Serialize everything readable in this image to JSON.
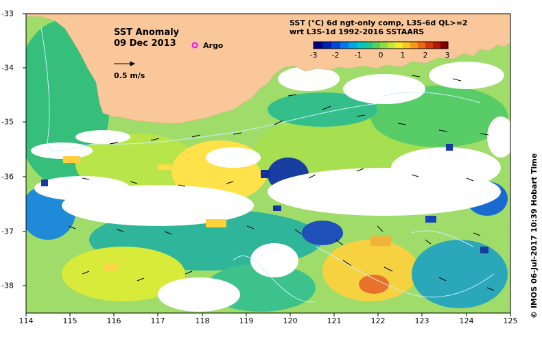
{
  "title": {
    "line1": "SST Anomaly",
    "line2": "09 Dec 2013"
  },
  "legend": {
    "argo_label": "Argo",
    "ref_vector_label": "0.5 m/s"
  },
  "product": {
    "line1": "SST (°C) 6d ngt-only comp, L3S-6d QL>=2",
    "line2": "wrt L3S-1d 1992-2016 SSTAARS"
  },
  "colorbar": {
    "ticks": [
      "-3",
      "-2",
      "-1",
      "0",
      "1",
      "2",
      "3"
    ],
    "min": -3,
    "max": 3
  },
  "axes": {
    "lon_ticks": [
      "114",
      "115",
      "116",
      "117",
      "118",
      "119",
      "120",
      "121",
      "122",
      "123",
      "124",
      "125"
    ],
    "lat_ticks": [
      "-33",
      "-34",
      "-35",
      "-36",
      "-37",
      "-38"
    ],
    "lon_range": [
      114,
      125
    ],
    "lat_range": [
      -38.5,
      -33
    ]
  },
  "credit": "©  IMOS 06-Jul-2017 10:39 Hobart Time",
  "colors": {
    "land": "#f9c79a",
    "missing": "#ffffff",
    "contour": "#c8f0ff"
  }
}
